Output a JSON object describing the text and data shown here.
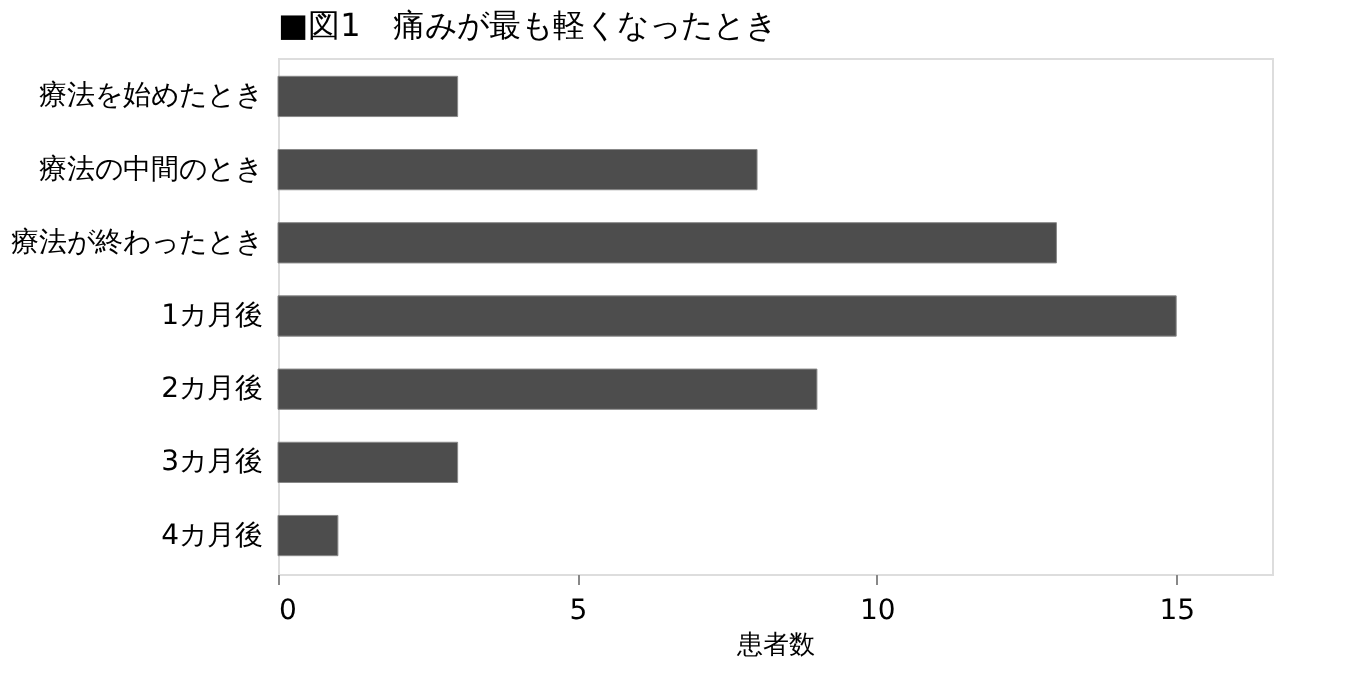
{
  "chart_data": {
    "type": "bar",
    "orientation": "horizontal",
    "title": "■図1　痛みが最も軽くなったとき",
    "xlabel": "患者数",
    "categories": [
      "療法を始めたとき",
      "療法の中間のとき",
      "療法が終わったとき",
      "1カ月後",
      "2カ月後",
      "3カ月後",
      "4カ月後"
    ],
    "values": [
      3,
      8,
      13,
      15,
      9,
      3,
      1
    ],
    "color": "#4d4d4d",
    "xlim": [
      0,
      16.6
    ],
    "xticks": [
      0,
      5,
      10,
      15
    ],
    "grid": false
  }
}
